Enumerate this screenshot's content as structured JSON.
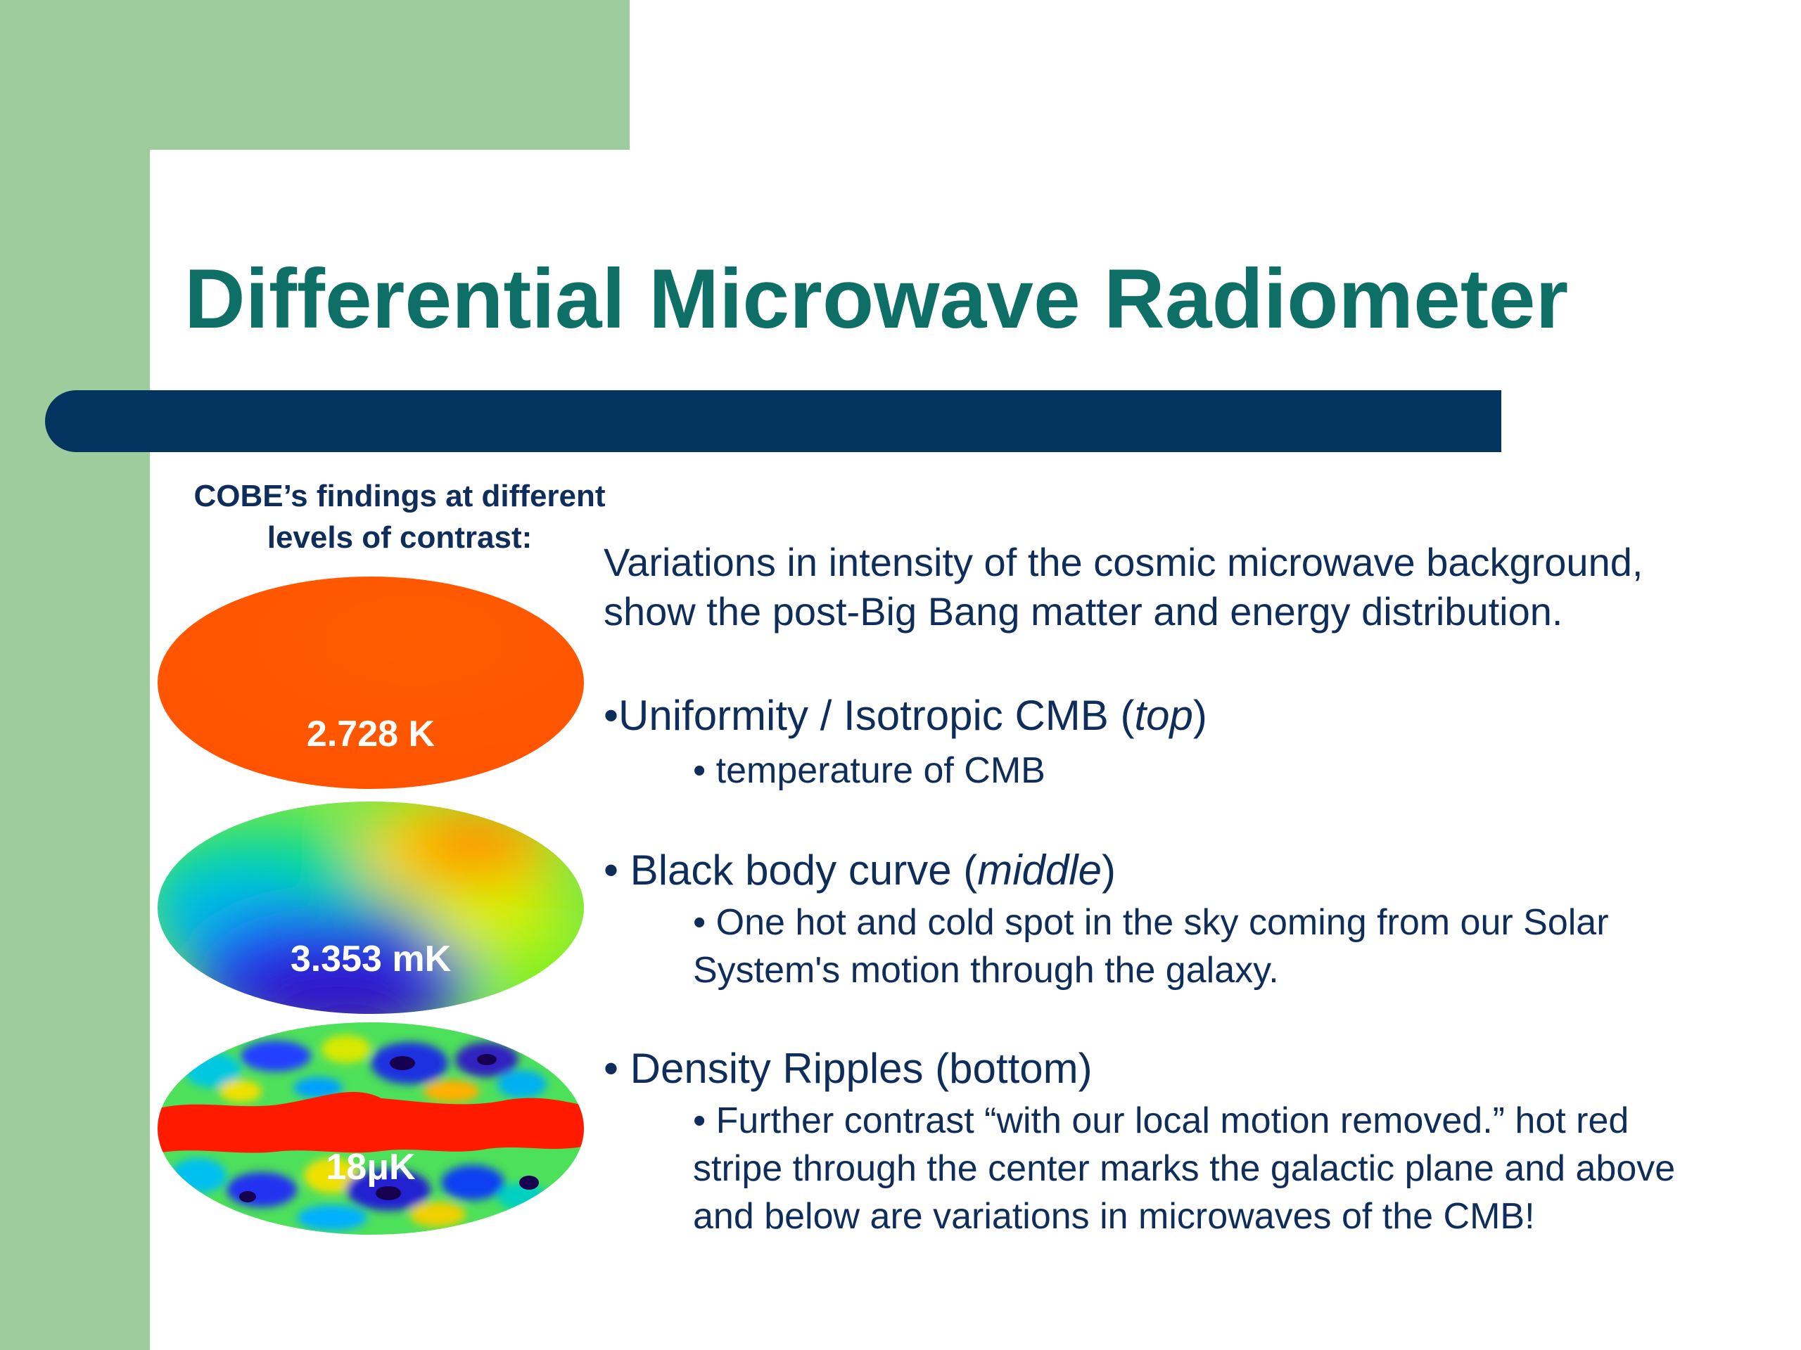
{
  "slide": {
    "title": "Differential Microwave Radiometer",
    "left_caption": {
      "line1": "COBE’s findings at different",
      "line2": "levels of contrast:"
    },
    "maps": [
      {
        "label": "2.728 K"
      },
      {
        "label": "3.353 mK"
      },
      {
        "label": "18μK"
      }
    ],
    "intro": {
      "line1": "Variations in intensity of the cosmic microwave background,",
      "line2": "show the post-Big Bang matter and energy distribution."
    },
    "bullets": [
      {
        "text": "•Uniformity / Isotropic CMB (",
        "emph": "top",
        "close": ")",
        "sub_lines": [
          "• temperature of CMB"
        ]
      },
      {
        "text": "• Black body curve (",
        "emph": "middle",
        "close": ")",
        "sub_lines": [
          "• One hot and cold spot in the sky coming from our Solar",
          "System's motion through the galaxy."
        ]
      },
      {
        "text": "• Density Ripples (bottom)",
        "sub_lines": [
          "• Further contrast “with our local motion removed.” hot red",
          "stripe through the center marks the galactic plane and above",
          "and below are variations in microwaves of the CMB!"
        ]
      }
    ]
  },
  "colors": {
    "accent_green": "#9dcd9c",
    "title_teal": "#0e6f67",
    "bar_navy": "#03345f",
    "text_navy": "#0e2d5a",
    "map_uniform_orange": "#ff5500"
  }
}
